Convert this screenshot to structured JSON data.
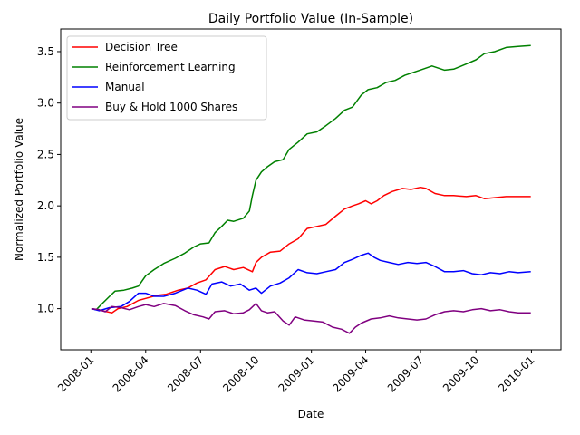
{
  "chart_data": {
    "type": "line",
    "title": "Daily Portfolio Value (In-Sample)",
    "xlabel": "Date",
    "ylabel": "Normalized Portfolio Value",
    "x_range": [
      "2007-11-12",
      "2010-02-19"
    ],
    "ylim": [
      0.6,
      3.72
    ],
    "x_ticks": [
      {
        "label": "2008-01",
        "date": "2008-01-01"
      },
      {
        "label": "2008-04",
        "date": "2008-04-01"
      },
      {
        "label": "2008-07",
        "date": "2008-07-01"
      },
      {
        "label": "2008-10",
        "date": "2008-10-01"
      },
      {
        "label": "2009-01",
        "date": "2009-01-01"
      },
      {
        "label": "2009-04",
        "date": "2009-04-01"
      },
      {
        "label": "2009-07",
        "date": "2009-07-01"
      },
      {
        "label": "2009-10",
        "date": "2009-10-01"
      },
      {
        "label": "2010-01",
        "date": "2010-01-01"
      }
    ],
    "y_ticks": [
      1.0,
      1.5,
      2.0,
      2.5,
      3.0,
      3.5
    ],
    "y_tick_labels": [
      "1.0",
      "1.5",
      "2.0",
      "2.5",
      "3.0",
      "3.5"
    ],
    "legend_position": "upper-left",
    "series": [
      {
        "name": "Decision Tree",
        "color": "#ff0000",
        "points": [
          [
            "2008-01-02",
            1.0
          ],
          [
            "2008-01-20",
            0.98
          ],
          [
            "2008-02-05",
            0.96
          ],
          [
            "2008-02-15",
            1.0
          ],
          [
            "2008-03-01",
            1.02
          ],
          [
            "2008-03-20",
            1.08
          ],
          [
            "2008-04-01",
            1.1
          ],
          [
            "2008-04-20",
            1.13
          ],
          [
            "2008-05-05",
            1.14
          ],
          [
            "2008-05-25",
            1.18
          ],
          [
            "2008-06-10",
            1.2
          ],
          [
            "2008-06-25",
            1.25
          ],
          [
            "2008-07-10",
            1.28
          ],
          [
            "2008-07-25",
            1.38
          ],
          [
            "2008-08-10",
            1.41
          ],
          [
            "2008-08-25",
            1.38
          ],
          [
            "2008-09-10",
            1.4
          ],
          [
            "2008-09-25",
            1.36
          ],
          [
            "2008-10-01",
            1.45
          ],
          [
            "2008-10-10",
            1.5
          ],
          [
            "2008-10-25",
            1.55
          ],
          [
            "2008-11-10",
            1.56
          ],
          [
            "2008-11-25",
            1.63
          ],
          [
            "2008-12-10",
            1.68
          ],
          [
            "2008-12-25",
            1.78
          ],
          [
            "2009-01-10",
            1.8
          ],
          [
            "2009-01-25",
            1.82
          ],
          [
            "2009-02-10",
            1.9
          ],
          [
            "2009-02-25",
            1.97
          ],
          [
            "2009-03-10",
            2.0
          ],
          [
            "2009-03-20",
            2.02
          ],
          [
            "2009-04-01",
            2.05
          ],
          [
            "2009-04-10",
            2.02
          ],
          [
            "2009-04-20",
            2.05
          ],
          [
            "2009-05-01",
            2.1
          ],
          [
            "2009-05-15",
            2.14
          ],
          [
            "2009-06-01",
            2.17
          ],
          [
            "2009-06-15",
            2.16
          ],
          [
            "2009-07-01",
            2.18
          ],
          [
            "2009-07-10",
            2.17
          ],
          [
            "2009-07-25",
            2.12
          ],
          [
            "2009-08-10",
            2.1
          ],
          [
            "2009-08-25",
            2.1
          ],
          [
            "2009-09-15",
            2.09
          ],
          [
            "2009-10-01",
            2.1
          ],
          [
            "2009-10-15",
            2.07
          ],
          [
            "2009-11-01",
            2.08
          ],
          [
            "2009-11-20",
            2.09
          ],
          [
            "2009-12-10",
            2.09
          ],
          [
            "2009-12-31",
            2.09
          ]
        ]
      },
      {
        "name": "Reinforcement Learning",
        "color": "#008000",
        "points": [
          [
            "2008-01-02",
            1.0
          ],
          [
            "2008-01-10",
            0.99
          ],
          [
            "2008-01-20",
            1.05
          ],
          [
            "2008-02-01",
            1.12
          ],
          [
            "2008-02-10",
            1.17
          ],
          [
            "2008-02-25",
            1.18
          ],
          [
            "2008-03-10",
            1.2
          ],
          [
            "2008-03-20",
            1.22
          ],
          [
            "2008-04-01",
            1.32
          ],
          [
            "2008-04-15",
            1.38
          ],
          [
            "2008-05-01",
            1.44
          ],
          [
            "2008-05-20",
            1.49
          ],
          [
            "2008-06-05",
            1.54
          ],
          [
            "2008-06-20",
            1.6
          ],
          [
            "2008-07-01",
            1.63
          ],
          [
            "2008-07-15",
            1.64
          ],
          [
            "2008-07-25",
            1.74
          ],
          [
            "2008-08-05",
            1.8
          ],
          [
            "2008-08-15",
            1.86
          ],
          [
            "2008-08-25",
            1.85
          ],
          [
            "2008-09-10",
            1.88
          ],
          [
            "2008-09-20",
            1.95
          ],
          [
            "2008-09-25",
            2.1
          ],
          [
            "2008-10-01",
            2.25
          ],
          [
            "2008-10-10",
            2.33
          ],
          [
            "2008-10-20",
            2.38
          ],
          [
            "2008-11-01",
            2.43
          ],
          [
            "2008-11-15",
            2.45
          ],
          [
            "2008-11-25",
            2.55
          ],
          [
            "2008-12-10",
            2.62
          ],
          [
            "2008-12-25",
            2.7
          ],
          [
            "2009-01-10",
            2.72
          ],
          [
            "2009-01-25",
            2.78
          ],
          [
            "2009-02-10",
            2.85
          ],
          [
            "2009-02-25",
            2.93
          ],
          [
            "2009-03-10",
            2.96
          ],
          [
            "2009-03-25",
            3.08
          ],
          [
            "2009-04-05",
            3.13
          ],
          [
            "2009-04-20",
            3.15
          ],
          [
            "2009-05-05",
            3.2
          ],
          [
            "2009-05-20",
            3.22
          ],
          [
            "2009-06-05",
            3.27
          ],
          [
            "2009-06-20",
            3.3
          ],
          [
            "2009-07-05",
            3.33
          ],
          [
            "2009-07-20",
            3.36
          ],
          [
            "2009-08-10",
            3.32
          ],
          [
            "2009-08-25",
            3.33
          ],
          [
            "2009-09-15",
            3.38
          ],
          [
            "2009-10-01",
            3.42
          ],
          [
            "2009-10-15",
            3.48
          ],
          [
            "2009-11-01",
            3.5
          ],
          [
            "2009-11-20",
            3.54
          ],
          [
            "2009-12-10",
            3.55
          ],
          [
            "2009-12-31",
            3.56
          ]
        ]
      },
      {
        "name": "Manual",
        "color": "#0000ff",
        "points": [
          [
            "2008-01-02",
            1.0
          ],
          [
            "2008-01-15",
            0.98
          ],
          [
            "2008-02-01",
            1.01
          ],
          [
            "2008-02-20",
            1.02
          ],
          [
            "2008-03-05",
            1.07
          ],
          [
            "2008-03-20",
            1.15
          ],
          [
            "2008-04-01",
            1.15
          ],
          [
            "2008-04-15",
            1.12
          ],
          [
            "2008-05-01",
            1.12
          ],
          [
            "2008-05-20",
            1.15
          ],
          [
            "2008-06-10",
            1.2
          ],
          [
            "2008-06-25",
            1.18
          ],
          [
            "2008-07-10",
            1.14
          ],
          [
            "2008-07-20",
            1.24
          ],
          [
            "2008-08-05",
            1.26
          ],
          [
            "2008-08-20",
            1.22
          ],
          [
            "2008-09-05",
            1.24
          ],
          [
            "2008-09-20",
            1.18
          ],
          [
            "2008-10-01",
            1.2
          ],
          [
            "2008-10-10",
            1.15
          ],
          [
            "2008-10-25",
            1.22
          ],
          [
            "2008-11-10",
            1.25
          ],
          [
            "2008-11-25",
            1.3
          ],
          [
            "2008-12-10",
            1.38
          ],
          [
            "2008-12-25",
            1.35
          ],
          [
            "2009-01-10",
            1.34
          ],
          [
            "2009-01-25",
            1.36
          ],
          [
            "2009-02-10",
            1.38
          ],
          [
            "2009-02-25",
            1.45
          ],
          [
            "2009-03-10",
            1.48
          ],
          [
            "2009-03-25",
            1.52
          ],
          [
            "2009-04-05",
            1.54
          ],
          [
            "2009-04-15",
            1.5
          ],
          [
            "2009-04-25",
            1.47
          ],
          [
            "2009-05-10",
            1.45
          ],
          [
            "2009-05-25",
            1.43
          ],
          [
            "2009-06-10",
            1.45
          ],
          [
            "2009-06-25",
            1.44
          ],
          [
            "2009-07-10",
            1.45
          ],
          [
            "2009-07-25",
            1.41
          ],
          [
            "2009-08-10",
            1.36
          ],
          [
            "2009-08-25",
            1.36
          ],
          [
            "2009-09-10",
            1.37
          ],
          [
            "2009-09-25",
            1.34
          ],
          [
            "2009-10-10",
            1.33
          ],
          [
            "2009-10-25",
            1.35
          ],
          [
            "2009-11-10",
            1.34
          ],
          [
            "2009-11-25",
            1.36
          ],
          [
            "2009-12-10",
            1.35
          ],
          [
            "2009-12-31",
            1.36
          ]
        ]
      },
      {
        "name": "Buy & Hold 1000 Shares",
        "color": "#800080",
        "points": [
          [
            "2008-01-02",
            1.0
          ],
          [
            "2008-01-15",
            0.99
          ],
          [
            "2008-01-25",
            0.97
          ],
          [
            "2008-02-05",
            1.02
          ],
          [
            "2008-02-20",
            1.01
          ],
          [
            "2008-03-05",
            0.99
          ],
          [
            "2008-03-20",
            1.02
          ],
          [
            "2008-04-01",
            1.04
          ],
          [
            "2008-04-15",
            1.02
          ],
          [
            "2008-05-01",
            1.05
          ],
          [
            "2008-05-20",
            1.03
          ],
          [
            "2008-06-05",
            0.98
          ],
          [
            "2008-06-20",
            0.94
          ],
          [
            "2008-07-05",
            0.92
          ],
          [
            "2008-07-15",
            0.9
          ],
          [
            "2008-07-25",
            0.97
          ],
          [
            "2008-08-10",
            0.98
          ],
          [
            "2008-08-25",
            0.95
          ],
          [
            "2008-09-10",
            0.96
          ],
          [
            "2008-09-20",
            0.99
          ],
          [
            "2008-10-01",
            1.05
          ],
          [
            "2008-10-10",
            0.98
          ],
          [
            "2008-10-20",
            0.96
          ],
          [
            "2008-11-01",
            0.97
          ],
          [
            "2008-11-15",
            0.88
          ],
          [
            "2008-11-25",
            0.84
          ],
          [
            "2008-12-05",
            0.92
          ],
          [
            "2008-12-20",
            0.89
          ],
          [
            "2009-01-05",
            0.88
          ],
          [
            "2009-01-20",
            0.87
          ],
          [
            "2009-02-05",
            0.82
          ],
          [
            "2009-02-20",
            0.8
          ],
          [
            "2009-03-05",
            0.76
          ],
          [
            "2009-03-15",
            0.82
          ],
          [
            "2009-03-25",
            0.86
          ],
          [
            "2009-04-10",
            0.9
          ],
          [
            "2009-04-25",
            0.91
          ],
          [
            "2009-05-10",
            0.93
          ],
          [
            "2009-05-25",
            0.91
          ],
          [
            "2009-06-10",
            0.9
          ],
          [
            "2009-06-25",
            0.89
          ],
          [
            "2009-07-10",
            0.9
          ],
          [
            "2009-07-25",
            0.94
          ],
          [
            "2009-08-10",
            0.97
          ],
          [
            "2009-08-25",
            0.98
          ],
          [
            "2009-09-10",
            0.97
          ],
          [
            "2009-09-25",
            0.99
          ],
          [
            "2009-10-10",
            1.0
          ],
          [
            "2009-10-25",
            0.98
          ],
          [
            "2009-11-10",
            0.99
          ],
          [
            "2009-11-25",
            0.97
          ],
          [
            "2009-12-10",
            0.96
          ],
          [
            "2009-12-31",
            0.96
          ]
        ]
      }
    ]
  }
}
